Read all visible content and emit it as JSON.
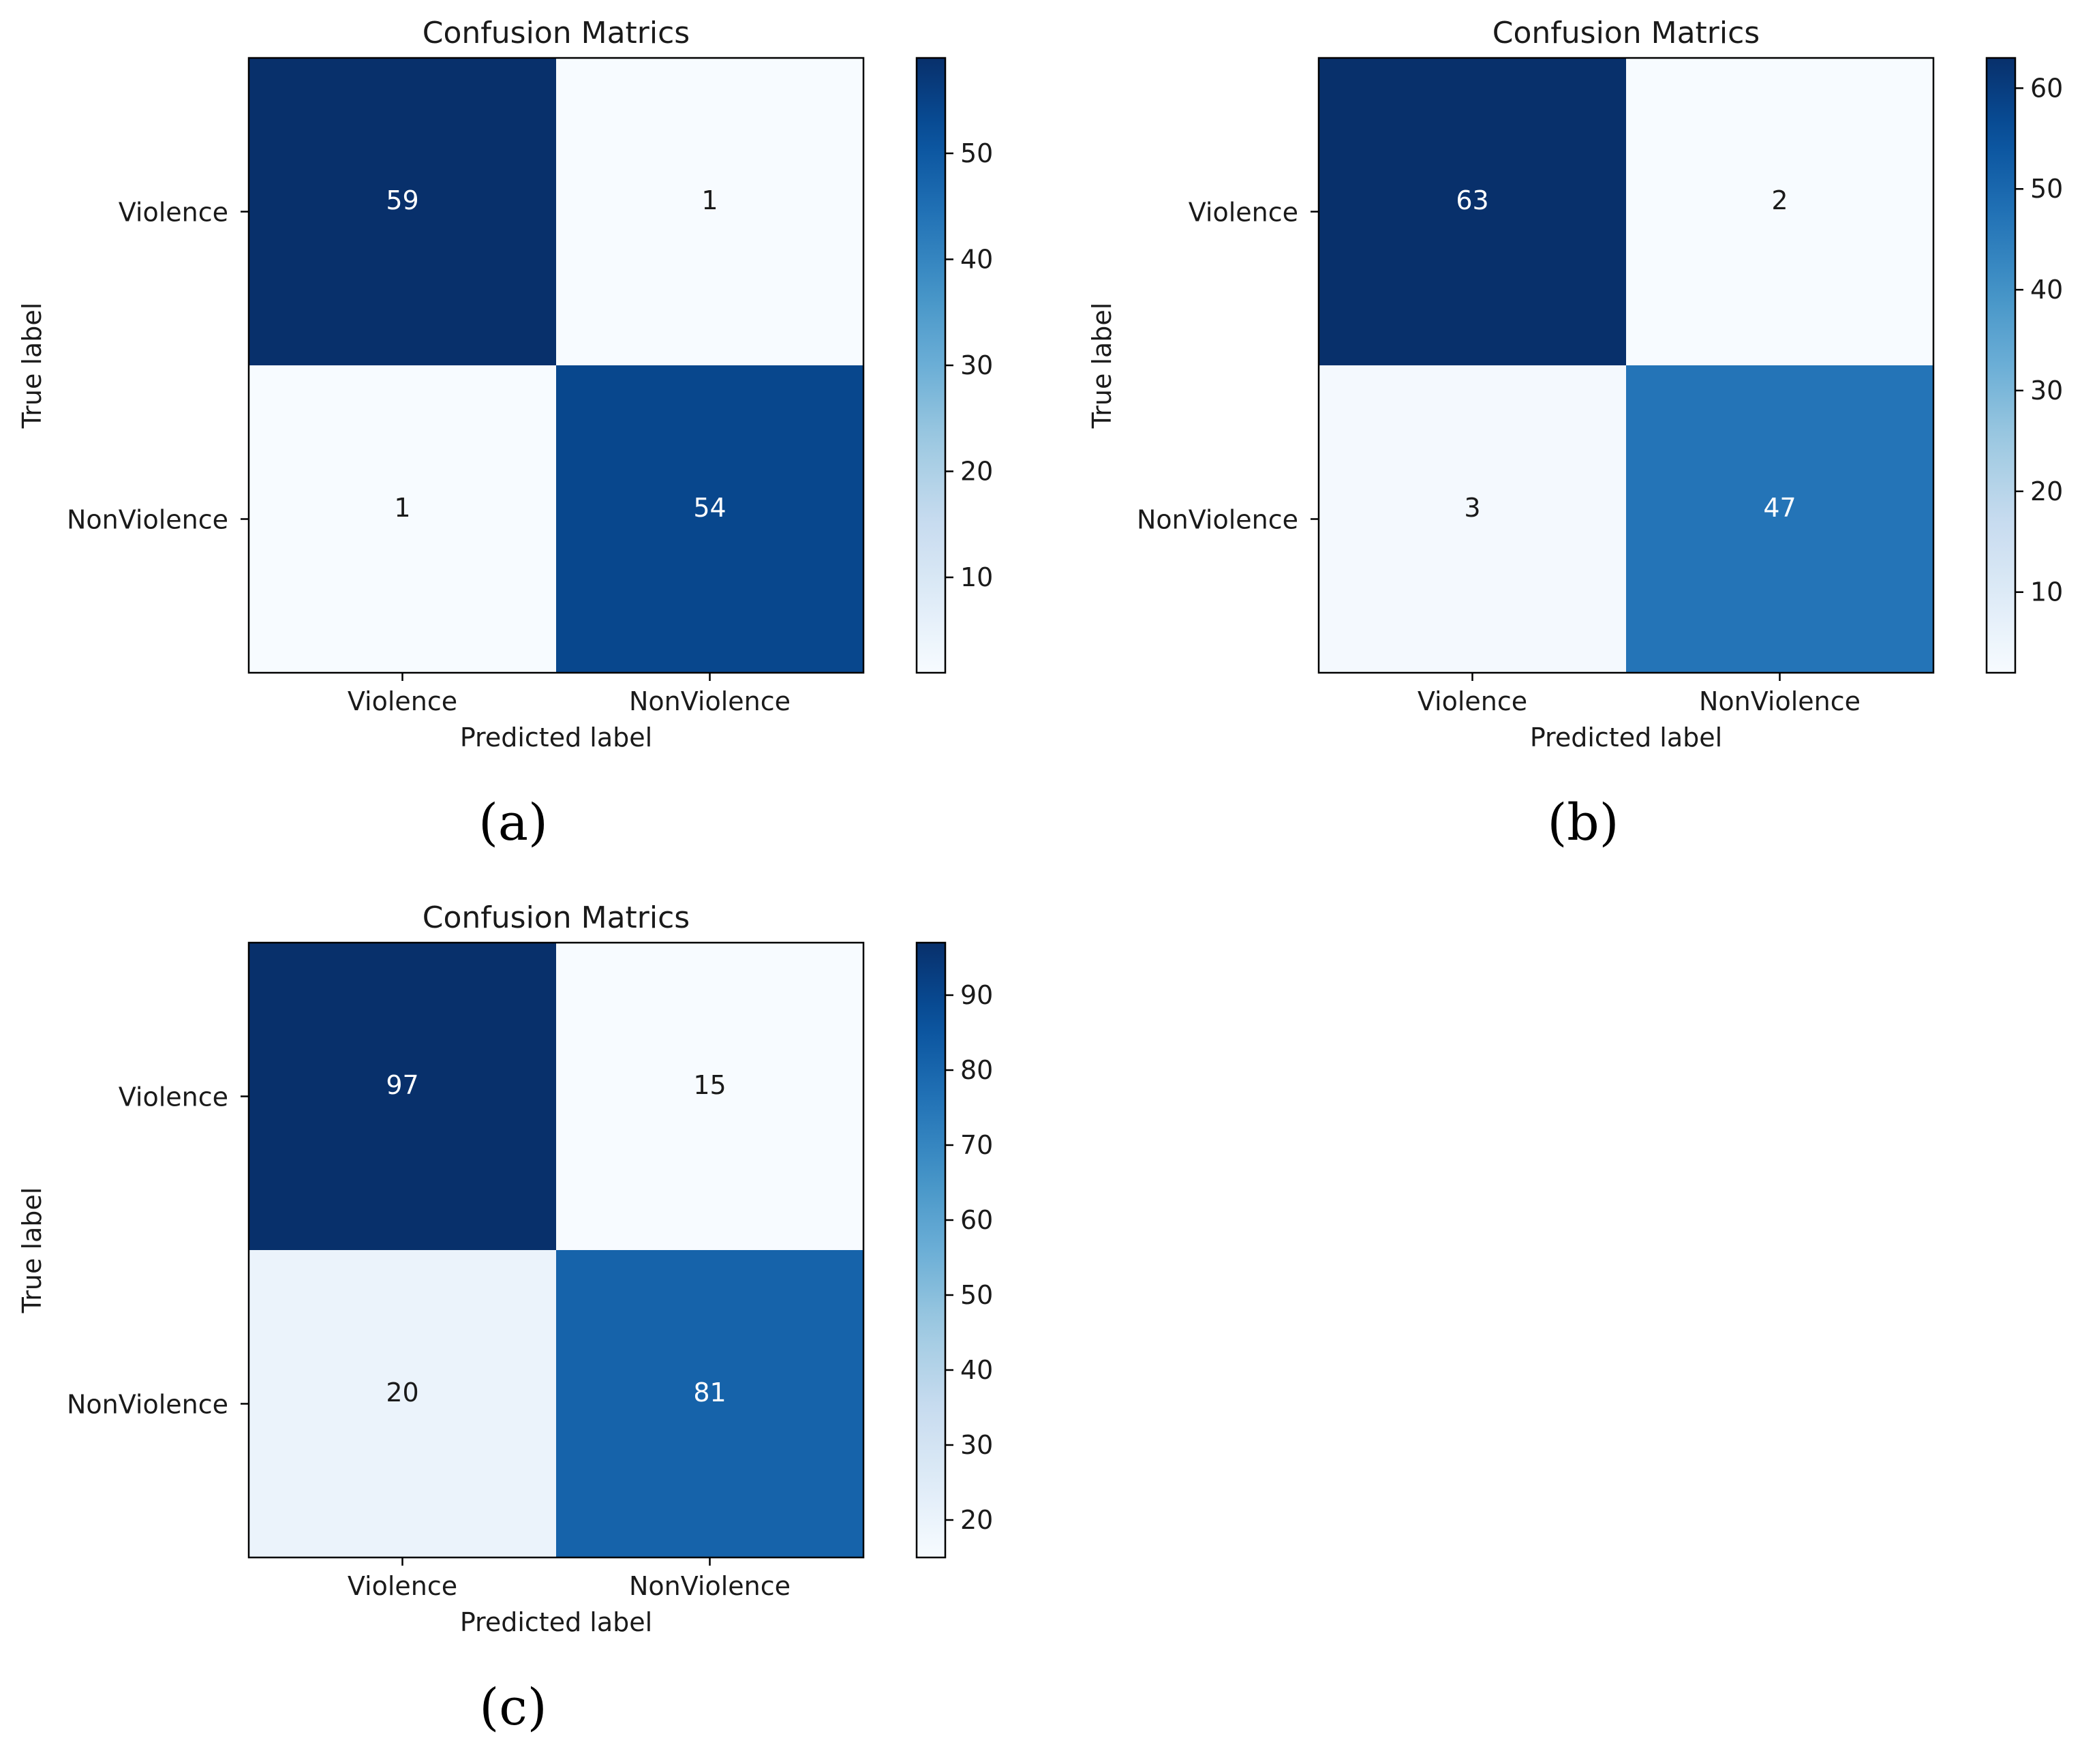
{
  "figure": {
    "panels": [
      "(a)",
      "(b)",
      "(c)"
    ]
  },
  "chart_data": [
    {
      "type": "heatmap",
      "caption": "(a)",
      "title": "Confusion Matrics",
      "xlabel": "Predicted label",
      "ylabel": "True label",
      "x_categories": [
        "Violence",
        "NonViolence"
      ],
      "y_categories": [
        "Violence",
        "NonViolence"
      ],
      "values": [
        [
          59,
          1
        ],
        [
          1,
          54
        ]
      ],
      "colorbar": {
        "min": 1,
        "max": 59,
        "ticks": [
          10,
          20,
          30,
          40,
          50
        ]
      },
      "colormap": "Blues"
    },
    {
      "type": "heatmap",
      "caption": "(b)",
      "title": "Confusion Matrics",
      "xlabel": "Predicted label",
      "ylabel": "True label",
      "x_categories": [
        "Violence",
        "NonViolence"
      ],
      "y_categories": [
        "Violence",
        "NonViolence"
      ],
      "values": [
        [
          63,
          2
        ],
        [
          3,
          47
        ]
      ],
      "colorbar": {
        "min": 2,
        "max": 63,
        "ticks": [
          10,
          20,
          30,
          40,
          50,
          60
        ]
      },
      "colormap": "Blues"
    },
    {
      "type": "heatmap",
      "caption": "(c)",
      "title": "Confusion Matrics",
      "xlabel": "Predicted label",
      "ylabel": "True label",
      "x_categories": [
        "Violence",
        "NonViolence"
      ],
      "y_categories": [
        "Violence",
        "NonViolence"
      ],
      "values": [
        [
          97,
          15
        ],
        [
          20,
          81
        ]
      ],
      "colorbar": {
        "min": 15,
        "max": 97,
        "ticks": [
          20,
          30,
          40,
          50,
          60,
          70,
          80,
          90
        ]
      },
      "colormap": "Blues"
    }
  ]
}
